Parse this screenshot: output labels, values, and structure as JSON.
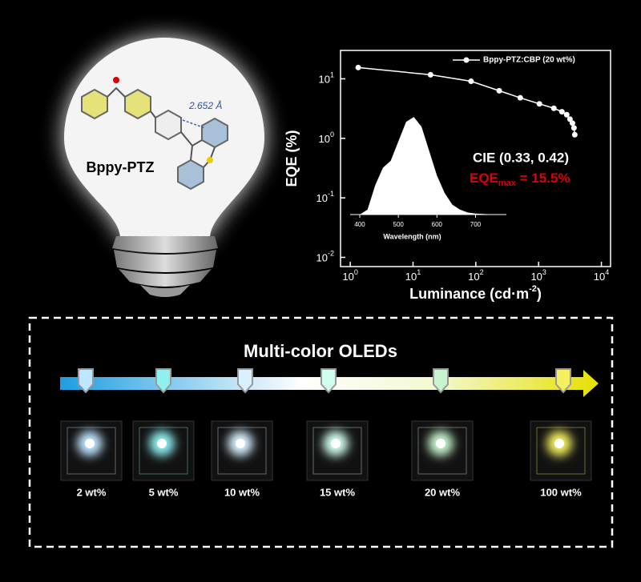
{
  "bulb": {
    "label": "Bppy-PTZ",
    "distance": "2.652 Å"
  },
  "chart_data": {
    "type": "line",
    "xlabel": {
      "text": "Luminance (cd·m",
      "sup": "-2",
      "suffix": ")"
    },
    "ylabel": "EQE (%)",
    "log_x": true,
    "log_y": true,
    "xlim": [
      0.7,
      14000
    ],
    "ylim": [
      0.007,
      30
    ],
    "xticks": [
      {
        "value": 1,
        "label": "10",
        "exponent": "0"
      },
      {
        "value": 10,
        "label": "10",
        "exponent": "1"
      },
      {
        "value": 100,
        "label": "10",
        "exponent": "2"
      },
      {
        "value": 1000,
        "label": "10",
        "exponent": "3"
      },
      {
        "value": 10000,
        "label": "10",
        "exponent": "4"
      }
    ],
    "yticks": [
      {
        "value": 0.01,
        "label": "10",
        "exponent": "-2"
      },
      {
        "value": 0.1,
        "label": "10",
        "exponent": "-1"
      },
      {
        "value": 1,
        "label": "10",
        "exponent": "0"
      },
      {
        "value": 10,
        "label": "10",
        "exponent": "1"
      }
    ],
    "legend": "upper right",
    "series": [
      {
        "name": "Bppy-PTZ:CBP (20 wt%)",
        "color": "#ffffff",
        "x": [
          1.34,
          19,
          84,
          236,
          510,
          1030,
          1750,
          2350,
          2800,
          3160,
          3460,
          3660,
          3770
        ],
        "values": [
          15.5,
          11.7,
          9.1,
          6.3,
          4.8,
          3.8,
          3.2,
          2.8,
          2.5,
          2.1,
          1.8,
          1.5,
          1.15
        ]
      }
    ],
    "annotations": [
      {
        "text": "CIE (0.33, 0.42)",
        "color": "#ffffff"
      },
      {
        "text": "EQE",
        "sub": "max",
        "suffix": " = 15.5%",
        "color": "#e00000"
      }
    ],
    "inset": {
      "type": "area",
      "xlabel": "Wavelength (nm)",
      "xlim": [
        375,
        780
      ],
      "ylim": [
        0,
        1.05
      ],
      "xticks": [
        400,
        500,
        600,
        700
      ],
      "color": "#ffffff",
      "x": [
        400,
        420,
        440,
        460,
        480,
        500,
        520,
        540,
        560,
        580,
        600,
        620,
        640,
        660,
        680,
        700,
        750
      ],
      "values": [
        0,
        0.05,
        0.3,
        0.48,
        0.55,
        0.75,
        0.95,
        1.0,
        0.9,
        0.65,
        0.4,
        0.22,
        0.1,
        0.05,
        0.02,
        0.01,
        0
      ]
    }
  },
  "panel": {
    "title": "Multi-color OLEDs",
    "samples": [
      {
        "label": "2 wt%",
        "color": "#bfe6ff"
      },
      {
        "label": "5 wt%",
        "color": "#8ff0f0"
      },
      {
        "label": "10 wt%",
        "color": "#d8f0ff"
      },
      {
        "label": "15 wt%",
        "color": "#d0fff0"
      },
      {
        "label": "20 wt%",
        "color": "#c8f5d0"
      },
      {
        "label": "100 wt%",
        "color": "#f4f060"
      }
    ]
  }
}
